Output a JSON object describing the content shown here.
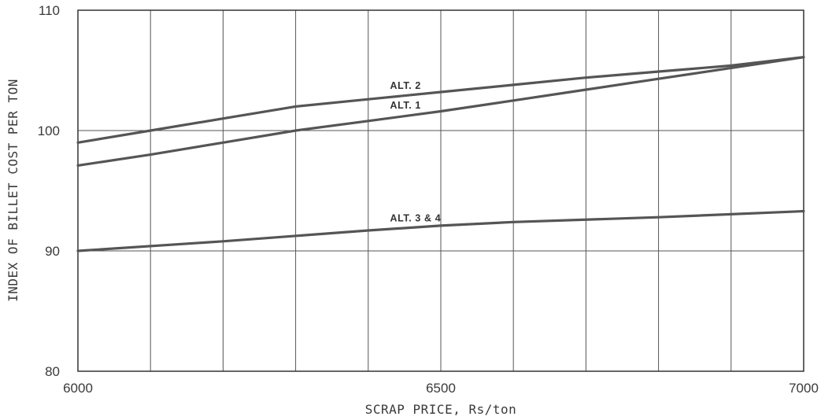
{
  "chart_data": {
    "type": "line",
    "xlabel": "SCRAP PRICE, Rs/ton",
    "ylabel": "INDEX OF BILLET COST PER TON",
    "xlim": [
      6000,
      7000
    ],
    "ylim": [
      80,
      110
    ],
    "x_ticks": [
      6000,
      6500,
      7000
    ],
    "y_ticks": [
      80,
      90,
      100,
      110
    ],
    "x_grid_step": 100,
    "y_grid_step": 10,
    "grid": true,
    "line_color": "#555555",
    "series": [
      {
        "name": "ALT. 2",
        "x": [
          6000,
          6100,
          6200,
          6300,
          6400,
          6500,
          6600,
          6700,
          6800,
          6900,
          7000
        ],
        "values": [
          99.0,
          100.0,
          101.0,
          102.0,
          102.6,
          103.2,
          103.8,
          104.4,
          104.9,
          105.4,
          106.1
        ]
      },
      {
        "name": "ALT. 1",
        "x": [
          6000,
          6100,
          6200,
          6300,
          6400,
          6500,
          6600,
          6700,
          6800,
          6900,
          7000
        ],
        "values": [
          97.1,
          98.0,
          99.0,
          100.0,
          100.8,
          101.6,
          102.5,
          103.4,
          104.3,
          105.2,
          106.1
        ]
      },
      {
        "name": "ALT. 3 & 4",
        "x": [
          6000,
          6200,
          6400,
          6500,
          6600,
          6800,
          7000
        ],
        "values": [
          90.0,
          90.8,
          91.7,
          92.1,
          92.4,
          92.8,
          93.3
        ]
      }
    ]
  }
}
